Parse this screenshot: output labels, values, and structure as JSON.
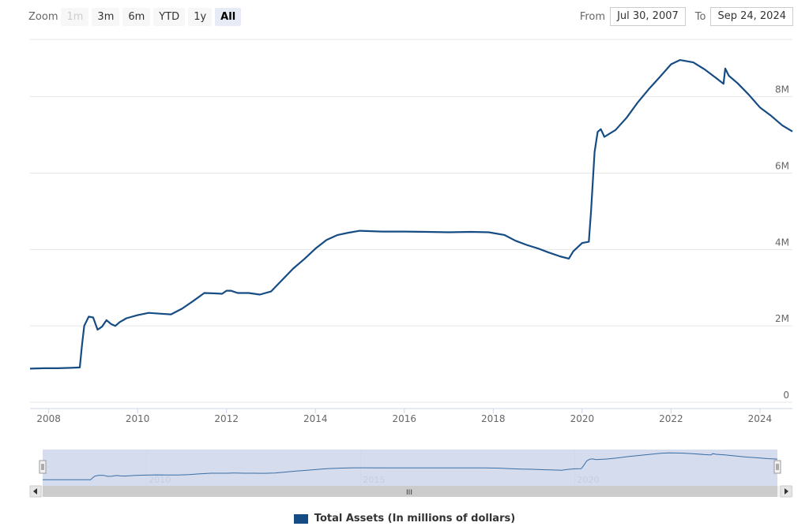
{
  "zoom": {
    "label": "Zoom",
    "buttons": [
      {
        "label": "1m",
        "state": "disabled"
      },
      {
        "label": "3m",
        "state": "normal"
      },
      {
        "label": "6m",
        "state": "normal"
      },
      {
        "label": "YTD",
        "state": "normal"
      },
      {
        "label": "1y",
        "state": "normal"
      },
      {
        "label": "All",
        "state": "active"
      }
    ]
  },
  "range": {
    "from_label": "From",
    "from_value": "Jul 30, 2007",
    "to_label": "To",
    "to_value": "Sep 24, 2024"
  },
  "colors": {
    "series": "#164c84",
    "navigator_fill": "#cdd6ea",
    "navigator_line": "#3a6ea5",
    "grid": "#e6e6e6"
  },
  "navigator": {
    "year_labels": [
      "2010",
      "2015",
      "2020"
    ],
    "scroll_left_icon": "chevron-left-icon",
    "scroll_right_icon": "chevron-right-icon",
    "scroll_grip": "III"
  },
  "chart_data": {
    "type": "line",
    "title": "",
    "xlabel": "",
    "ylabel": "",
    "x_range": [
      2007.58,
      2024.73
    ],
    "y_range": [
      0,
      9500000
    ],
    "x_ticks": [
      2008,
      2010,
      2012,
      2014,
      2016,
      2018,
      2020,
      2022,
      2024
    ],
    "x_tick_labels": [
      "2008",
      "2010",
      "2012",
      "2014",
      "2016",
      "2018",
      "2020",
      "2022",
      "2024"
    ],
    "y_ticks": [
      0,
      2000000,
      4000000,
      6000000,
      8000000
    ],
    "y_tick_labels": [
      "0",
      "2M",
      "4M",
      "6M",
      "8M"
    ],
    "legend": [
      "Total Assets (In millions of dollars)"
    ],
    "legend_position": "bottom-center",
    "series": [
      {
        "name": "Total Assets (In millions of dollars)",
        "x": [
          2007.58,
          2007.9,
          2008.2,
          2008.5,
          2008.7,
          2008.75,
          2008.8,
          2008.9,
          2009.0,
          2009.1,
          2009.2,
          2009.3,
          2009.4,
          2009.5,
          2009.6,
          2009.75,
          2010.0,
          2010.25,
          2010.5,
          2010.75,
          2011.0,
          2011.25,
          2011.5,
          2011.75,
          2011.9,
          2012.0,
          2012.1,
          2012.25,
          2012.5,
          2012.75,
          2013.0,
          2013.25,
          2013.5,
          2013.75,
          2014.0,
          2014.25,
          2014.5,
          2014.75,
          2015.0,
          2015.5,
          2016.0,
          2016.5,
          2017.0,
          2017.5,
          2017.9,
          2018.25,
          2018.5,
          2018.75,
          2019.0,
          2019.25,
          2019.5,
          2019.7,
          2019.8,
          2020.0,
          2020.15,
          2020.2,
          2020.28,
          2020.35,
          2020.42,
          2020.5,
          2020.75,
          2021.0,
          2021.25,
          2021.5,
          2021.75,
          2022.0,
          2022.2,
          2022.5,
          2022.75,
          2023.0,
          2023.18,
          2023.22,
          2023.3,
          2023.5,
          2023.75,
          2024.0,
          2024.25,
          2024.5,
          2024.73
        ],
        "values": [
          880000,
          890000,
          890000,
          900000,
          910000,
          1500000,
          2000000,
          2240000,
          2220000,
          1900000,
          1980000,
          2150000,
          2050000,
          2000000,
          2100000,
          2200000,
          2280000,
          2340000,
          2320000,
          2300000,
          2450000,
          2650000,
          2860000,
          2850000,
          2840000,
          2920000,
          2920000,
          2860000,
          2860000,
          2820000,
          2900000,
          3200000,
          3500000,
          3750000,
          4020000,
          4250000,
          4380000,
          4440000,
          4490000,
          4470000,
          4470000,
          4460000,
          4450000,
          4460000,
          4450000,
          4380000,
          4230000,
          4120000,
          4030000,
          3920000,
          3820000,
          3760000,
          3950000,
          4170000,
          4200000,
          5000000,
          6550000,
          7080000,
          7150000,
          6950000,
          7130000,
          7450000,
          7850000,
          8200000,
          8520000,
          8850000,
          8960000,
          8900000,
          8720000,
          8500000,
          8340000,
          8740000,
          8550000,
          8350000,
          8050000,
          7720000,
          7500000,
          7250000,
          7090000
        ]
      }
    ]
  }
}
